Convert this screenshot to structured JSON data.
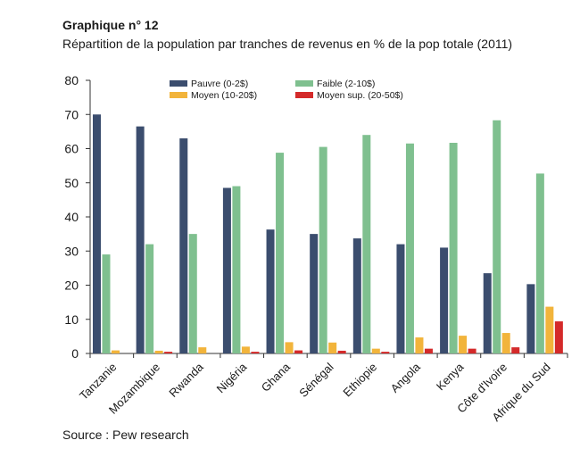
{
  "figure_number": "Graphique n° 12",
  "source": "Source : Pew research",
  "chart_data": {
    "type": "bar",
    "title": "Répartition de la population par tranches de revenus en % de la pop totale (2011)",
    "xlabel": "",
    "ylabel": "",
    "ylim": [
      0,
      80
    ],
    "yticks": [
      0,
      10,
      20,
      30,
      40,
      50,
      60,
      70,
      80
    ],
    "grid": false,
    "legend_position": "top",
    "categories": [
      "Tanzanie",
      "Mozambique",
      "Rwanda",
      "Nigéria",
      "Ghana",
      "Sénégal",
      "Ethiopie",
      "Angola",
      "Kenya",
      "Côte d'Ivoire",
      "Afrique du Sud"
    ],
    "series": [
      {
        "name": "Pauvre (0-2$)",
        "color": "#3b4d6e",
        "values": [
          70,
          66.5,
          63,
          48.5,
          36.3,
          35,
          33.7,
          32,
          31,
          23.5,
          20.3
        ]
      },
      {
        "name": "Faible (2-10$)",
        "color": "#7fc08f",
        "values": [
          29,
          32,
          35,
          49,
          58.8,
          60.5,
          64,
          61.5,
          61.7,
          68.3,
          52.7
        ]
      },
      {
        "name": "Moyen (10-20$)",
        "color": "#f2b43b",
        "values": [
          0.9,
          0.8,
          1.8,
          2,
          3.3,
          3.2,
          1.4,
          4.7,
          5.2,
          6,
          13.7
        ]
      },
      {
        "name": "Moyen sup. (20-50$)",
        "color": "#d42a2a",
        "values": [
          0,
          0.5,
          0,
          0.5,
          0.9,
          0.8,
          0.5,
          1.4,
          1.4,
          1.8,
          9.4
        ]
      }
    ]
  }
}
